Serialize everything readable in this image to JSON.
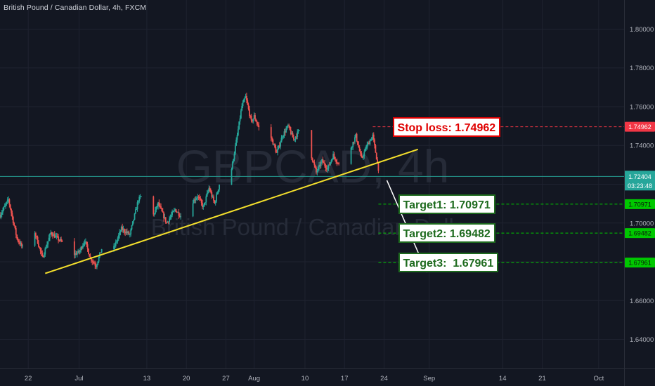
{
  "chart_data": {
    "type": "candlestick",
    "title": "British Pound / Canadian Dollar, 4h, FXCM",
    "watermark": {
      "symbol": "GBPCAD, 4h",
      "name": "British Pound / Canadian Dollar"
    },
    "x_ticks": [
      {
        "label": "22",
        "day": -9
      },
      {
        "label": "Jul",
        "day": 0
      },
      {
        "label": "13",
        "day": 12
      },
      {
        "label": "20",
        "day": 19
      },
      {
        "label": "27",
        "day": 26
      },
      {
        "label": "Aug",
        "day": 31
      },
      {
        "label": "10",
        "day": 40
      },
      {
        "label": "17",
        "day": 47
      },
      {
        "label": "24",
        "day": 54
      },
      {
        "label": "Sep",
        "day": 62
      },
      {
        "label": "14",
        "day": 75
      },
      {
        "label": "21",
        "day": 82
      },
      {
        "label": "Oct",
        "day": 92
      }
    ],
    "y_ticks": [
      "1.80000",
      "1.78000",
      "1.76000",
      "1.74000",
      "1.72000",
      "1.70000",
      "1.68000",
      "1.66000",
      "1.64000"
    ],
    "ylim": [
      1.625,
      1.815
    ],
    "xlim": [
      -14.0,
      96.5
    ],
    "grid": true,
    "price_path": [
      [
        -14.0,
        1.704
      ],
      [
        -12.5,
        1.712
      ],
      [
        -11.0,
        1.692
      ],
      [
        -9.5,
        1.685
      ],
      [
        -8.0,
        1.697
      ],
      [
        -6.5,
        1.682
      ],
      [
        -5.0,
        1.695
      ],
      [
        -3.0,
        1.69
      ],
      [
        -1.5,
        1.683
      ],
      [
        0.0,
        1.685
      ],
      [
        1.0,
        1.691
      ],
      [
        2.0,
        1.682
      ],
      [
        3.0,
        1.678
      ],
      [
        4.5,
        1.691
      ],
      [
        6.0,
        1.686
      ],
      [
        7.5,
        1.697
      ],
      [
        9.0,
        1.694
      ],
      [
        10.5,
        1.712
      ],
      [
        11.5,
        1.715
      ],
      [
        13.0,
        1.703
      ],
      [
        14.0,
        1.71
      ],
      [
        15.5,
        1.7
      ],
      [
        17.0,
        1.707
      ],
      [
        18.5,
        1.702
      ],
      [
        19.5,
        1.709
      ],
      [
        21.0,
        1.714
      ],
      [
        22.0,
        1.708
      ],
      [
        23.0,
        1.718
      ],
      [
        24.0,
        1.71
      ],
      [
        25.0,
        1.722
      ],
      [
        26.0,
        1.73
      ],
      [
        27.0,
        1.728
      ],
      [
        28.0,
        1.745
      ],
      [
        28.8,
        1.76
      ],
      [
        29.5,
        1.765
      ],
      [
        30.5,
        1.752
      ],
      [
        31.0,
        1.755
      ],
      [
        32.0,
        1.748
      ],
      [
        33.0,
        1.74
      ],
      [
        34.0,
        1.744
      ],
      [
        35.0,
        1.736
      ],
      [
        36.0,
        1.745
      ],
      [
        37.0,
        1.75
      ],
      [
        38.0,
        1.743
      ],
      [
        39.0,
        1.748
      ],
      [
        40.0,
        1.74
      ],
      [
        41.0,
        1.736
      ],
      [
        42.0,
        1.726
      ],
      [
        43.0,
        1.732
      ],
      [
        44.0,
        1.728
      ],
      [
        45.0,
        1.735
      ],
      [
        46.0,
        1.73
      ],
      [
        47.0,
        1.727
      ],
      [
        48.0,
        1.738
      ],
      [
        49.0,
        1.745
      ],
      [
        50.0,
        1.733
      ],
      [
        51.0,
        1.74
      ],
      [
        52.0,
        1.745
      ],
      [
        53.0,
        1.728
      ],
      [
        53.6,
        1.724
      ]
    ],
    "trendline": {
      "start": [
        -6.0,
        1.674
      ],
      "end": [
        60.0,
        1.738
      ],
      "color": "#f5e02c"
    },
    "forecast_arrow": {
      "start": [
        54.5,
        1.722
      ],
      "end": [
        61.5,
        1.675
      ],
      "color": "#ffffff"
    },
    "levels": [
      {
        "name": "stop-loss",
        "price": 1.74962,
        "axis_label": "1.74962",
        "annotation": "Stop loss: 1.74962",
        "color": "#f23645",
        "box_day": 55.5
      },
      {
        "name": "target1",
        "price": 1.70971,
        "axis_label": "1.70971",
        "annotation": "Target1: 1.70971",
        "color": "#00c800",
        "box_day": 56.5
      },
      {
        "name": "target2",
        "price": 1.69482,
        "axis_label": "1.69482",
        "annotation": "Target2: 1.69482",
        "color": "#00c800",
        "box_day": 56.5
      },
      {
        "name": "target3",
        "price": 1.67961,
        "axis_label": "1.67961",
        "annotation": "Target3:  1.67961",
        "color": "#00c800",
        "box_day": 56.5
      }
    ],
    "last_price": {
      "price": 1.72404,
      "label": "1.72404",
      "countdown": "03:23:48",
      "color": "#26a69a"
    },
    "candle_colors": {
      "up": "#26a69a",
      "down": "#ef5350"
    }
  }
}
